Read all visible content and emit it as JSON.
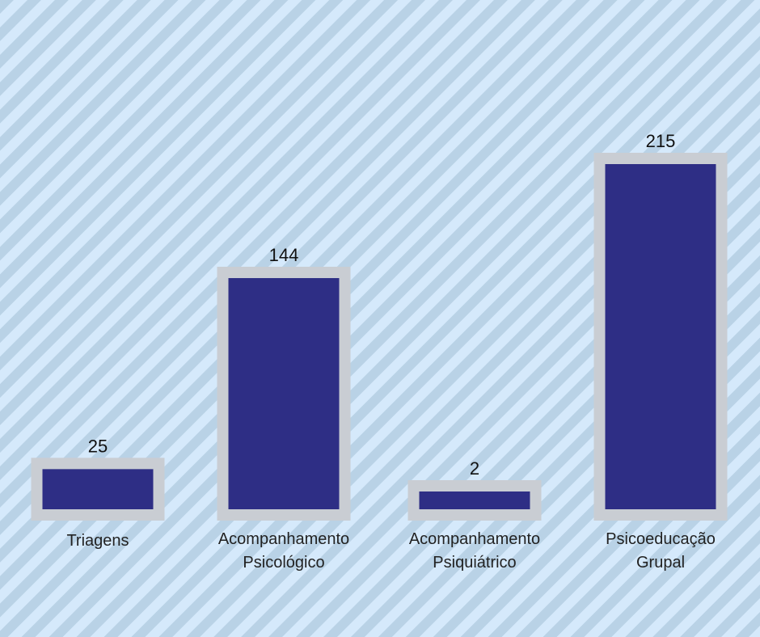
{
  "chart_data": {
    "type": "bar",
    "categories": [
      [
        "Triagens"
      ],
      [
        "Acompanhamento",
        "Psicológico"
      ],
      [
        "Acompanhamento",
        "Psiquiátrico"
      ],
      [
        "Psicoeducação",
        "Grupal"
      ]
    ],
    "values": [
      25,
      144,
      2,
      215
    ],
    "data_labels": [
      "25",
      "144",
      "2",
      "215"
    ],
    "title": "",
    "xlabel": "",
    "ylabel": "",
    "ylim": [
      0,
      215
    ],
    "grid": false,
    "legend": "none"
  },
  "colors": {
    "background_light": "#d5e9fb",
    "background_stripe": "#b9d2e6",
    "bar_fill": "#2e2e85",
    "bar_border": "#c9cdd3",
    "text": "#111111"
  }
}
